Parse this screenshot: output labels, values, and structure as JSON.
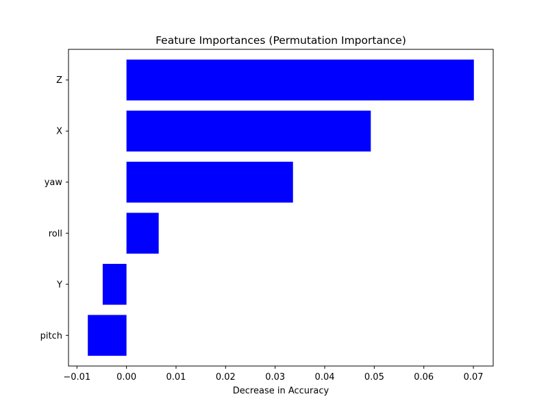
{
  "chart_data": {
    "type": "bar",
    "orientation": "horizontal",
    "title": "Feature Importances (Permutation Importance)",
    "xlabel": "Decrease in Accuracy",
    "ylabel": "",
    "categories": [
      "Z",
      "X",
      "yaw",
      "roll",
      "Y",
      "pitch"
    ],
    "values": [
      0.0701,
      0.0493,
      0.0336,
      0.0065,
      -0.0048,
      -0.0078
    ],
    "xlim": [
      -0.0117,
      0.074
    ],
    "xticks": [
      -0.01,
      0.0,
      0.01,
      0.02,
      0.03,
      0.04,
      0.05,
      0.06,
      0.07
    ],
    "xtick_labels": [
      "−0.01",
      "0.00",
      "0.01",
      "0.02",
      "0.03",
      "0.04",
      "0.05",
      "0.06",
      "0.07"
    ],
    "grid": false,
    "bar_color": "#0000ff"
  }
}
